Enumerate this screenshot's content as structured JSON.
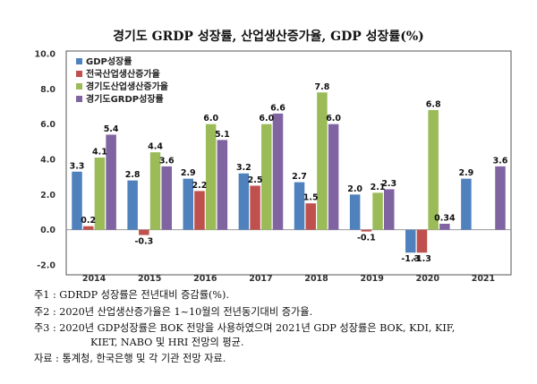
{
  "chart_data": {
    "type": "bar",
    "title": "경기도 GRDP 성장률, 산업생산증가율, GDP 성장률(%)",
    "categories": [
      "2014",
      "2015",
      "2016",
      "2017",
      "2018",
      "2019",
      "2020",
      "2021"
    ],
    "ylim": [
      -2.0,
      10.0
    ],
    "yticks": [
      "-2.0",
      "0.0",
      "2.0",
      "4.0",
      "6.0",
      "8.0",
      "10.0"
    ],
    "grid": false,
    "legend_position": "top-left",
    "series": [
      {
        "name": "GDP성장률",
        "color": "#4f81bd",
        "values": [
          3.3,
          2.8,
          2.9,
          3.2,
          2.7,
          2.0,
          -1.3,
          2.9
        ],
        "labels": [
          "3.3",
          "2.8",
          "2.9",
          "3.2",
          "2.7",
          "2.0",
          "-1.3",
          "2.9"
        ]
      },
      {
        "name": "전국산업생산증가율",
        "color": "#c0504d",
        "values": [
          0.2,
          -0.3,
          2.2,
          2.5,
          1.5,
          -0.1,
          -1.3,
          null
        ],
        "labels": [
          "0.2",
          "-0.3",
          "2.2",
          "2.5",
          "1.5",
          "-0.1",
          "-1.3",
          ""
        ]
      },
      {
        "name": "경기도산업생산증가율",
        "color": "#9bbb59",
        "values": [
          4.1,
          4.4,
          6.0,
          6.0,
          7.8,
          2.1,
          6.8,
          null
        ],
        "labels": [
          "4.1",
          "4.4",
          "6.0",
          "6.0",
          "7.8",
          "2.1",
          "6.8",
          ""
        ]
      },
      {
        "name": "경기도GRDP성장률",
        "color": "#8064a2",
        "values": [
          5.4,
          3.6,
          5.1,
          6.6,
          6.0,
          2.3,
          0.34,
          3.6
        ],
        "labels": [
          "5.4",
          "3.6",
          "5.1",
          "6.6",
          "6.0",
          "2.3",
          "0.34",
          "3.6"
        ]
      }
    ]
  },
  "notes": [
    "주1 : GDRDP 성장률은 전년대비 증감률(%).",
    "주2 : 2020년 산업생산증가율은 1~10월의 전년동기대비 증가율.",
    "주3 : 2020년 GDP성장률은 BOK 전망을 사용하였으며 2021년 GDP 성장률은 BOK, KDI, KIF,",
    "KIET, NABO 및 HRI 전망의 평균.",
    "자료 : 통계청, 한국은행 및 각 기관 전망 자료."
  ]
}
